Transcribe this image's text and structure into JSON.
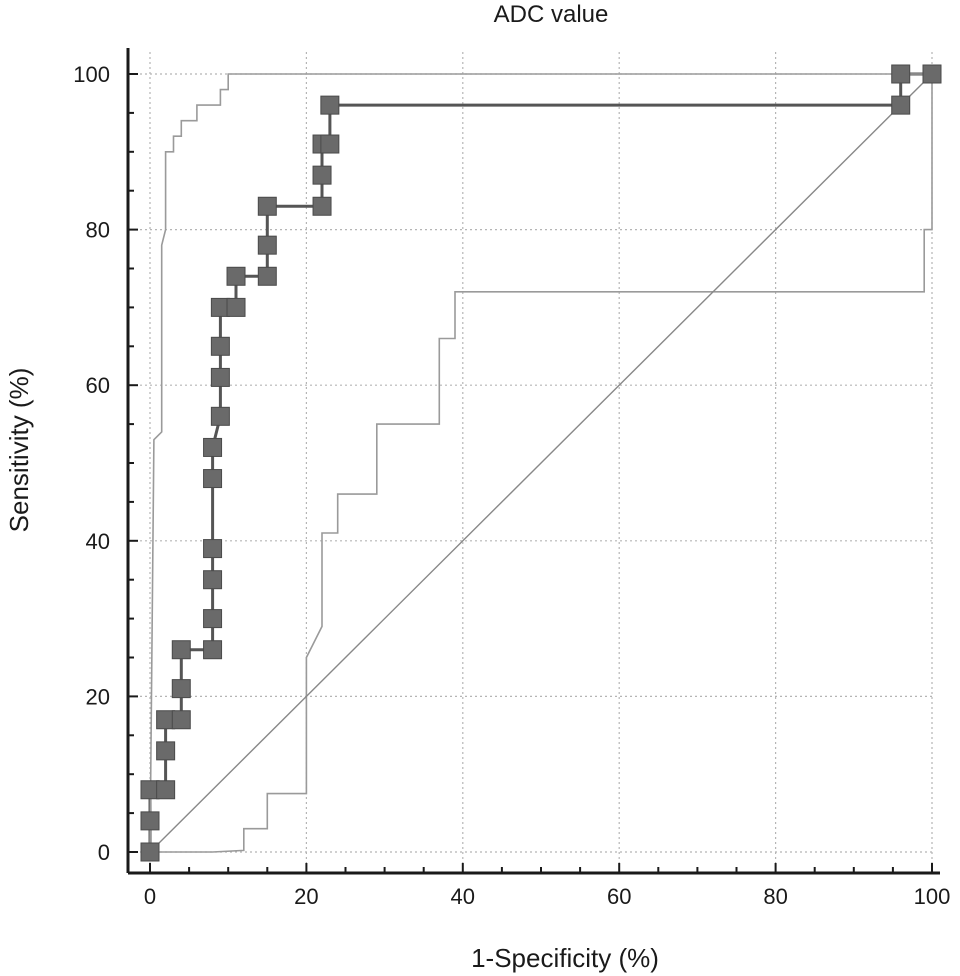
{
  "chart_data": {
    "type": "line",
    "title": "ADC value",
    "xlabel": "1-Specificity (%)",
    "ylabel": "Sensitivity (%)",
    "xlim": [
      0,
      100
    ],
    "ylim": [
      0,
      100
    ],
    "x_ticks": [
      "0",
      "20",
      "40",
      "60",
      "80",
      "100"
    ],
    "y_ticks": [
      "0",
      "20",
      "40",
      "60",
      "80",
      "100"
    ],
    "grid": true,
    "legend": "none",
    "series": [
      {
        "role": "roc",
        "color": "#555555",
        "points": [
          [
            0,
            0
          ],
          [
            0,
            4
          ],
          [
            0,
            8
          ],
          [
            2,
            8
          ],
          [
            2,
            13
          ],
          [
            2,
            17
          ],
          [
            4,
            17
          ],
          [
            4,
            21
          ],
          [
            4,
            26
          ],
          [
            8,
            26
          ],
          [
            8,
            30
          ],
          [
            8,
            35
          ],
          [
            8,
            39
          ],
          [
            8,
            48
          ],
          [
            8,
            52
          ],
          [
            9,
            56
          ],
          [
            9,
            61
          ],
          [
            9,
            65
          ],
          [
            9,
            70
          ],
          [
            11,
            70
          ],
          [
            11,
            74
          ],
          [
            15,
            74
          ],
          [
            15,
            78
          ],
          [
            15,
            83
          ],
          [
            22,
            83
          ],
          [
            22,
            87
          ],
          [
            22,
            91
          ],
          [
            23,
            91
          ],
          [
            23,
            96
          ],
          [
            96,
            96
          ],
          [
            96,
            100
          ],
          [
            100,
            100
          ]
        ]
      },
      {
        "role": "upper-confidence-bound",
        "color": "#9a9a9a",
        "points": [
          [
            0,
            0
          ],
          [
            0.5,
            53
          ],
          [
            1.5,
            54
          ],
          [
            1.5,
            78
          ],
          [
            2,
            80
          ],
          [
            2,
            90
          ],
          [
            3,
            90
          ],
          [
            3,
            92
          ],
          [
            4,
            92
          ],
          [
            4,
            94
          ],
          [
            6,
            94
          ],
          [
            6,
            96
          ],
          [
            9,
            96
          ],
          [
            9,
            98
          ],
          [
            10,
            98
          ],
          [
            10,
            100
          ],
          [
            100,
            100
          ]
        ]
      },
      {
        "role": "lower-confidence-bound",
        "color": "#9a9a9a",
        "points": [
          [
            0,
            0
          ],
          [
            8,
            0
          ],
          [
            12,
            0.2
          ],
          [
            12,
            3
          ],
          [
            15,
            3
          ],
          [
            15,
            7.5
          ],
          [
            20,
            7.5
          ],
          [
            20,
            25
          ],
          [
            22,
            29
          ],
          [
            22,
            41
          ],
          [
            24,
            41
          ],
          [
            24,
            46
          ],
          [
            29,
            46
          ],
          [
            29,
            55
          ],
          [
            37,
            55
          ],
          [
            37,
            66
          ],
          [
            39,
            66
          ],
          [
            39,
            72
          ],
          [
            99,
            72
          ],
          [
            99,
            80
          ],
          [
            100,
            80
          ],
          [
            100,
            100
          ]
        ]
      },
      {
        "role": "reference-diagonal",
        "color": "#888888",
        "points": [
          [
            0,
            0
          ],
          [
            100,
            100
          ]
        ]
      }
    ]
  }
}
